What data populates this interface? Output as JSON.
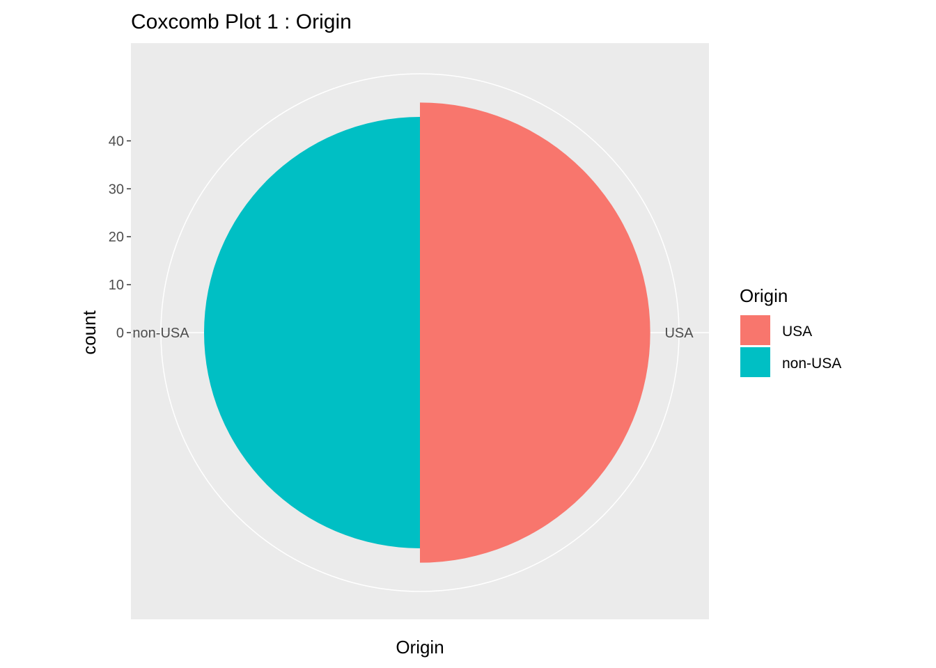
{
  "chart_data": {
    "type": "pie",
    "subtype": "coxcomb",
    "title": "Coxcomb Plot 1 : Origin",
    "xlabel": "Origin",
    "ylabel": "count",
    "categories": [
      "USA",
      "non-USA"
    ],
    "values": [
      48,
      45
    ],
    "colors": {
      "USA": "#F8766D",
      "non-USA": "#00BFC4",
      "panel_background": "#EBEBEB",
      "grid": "#FFFFFF"
    },
    "radial_axis": {
      "ticks": [
        0,
        10,
        20,
        30,
        40
      ],
      "tick_labels": [
        "0",
        "10",
        "20",
        "30",
        "40"
      ],
      "range": [
        0,
        54
      ]
    },
    "legend": {
      "title": "Origin",
      "entries": [
        "USA",
        "non-USA"
      ],
      "position": "right"
    }
  }
}
